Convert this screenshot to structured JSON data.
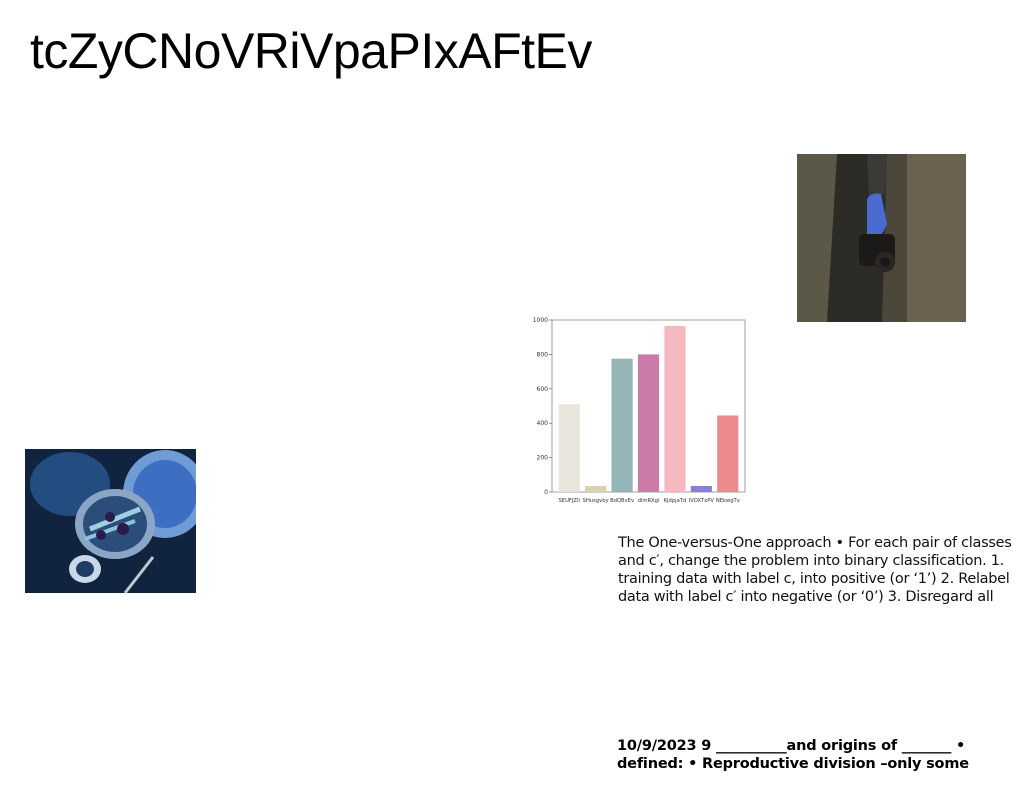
{
  "title": "tcZyCNoVRiVpaPIxAFtEv",
  "paragraph": "The One-versus-One approach • For each pair of classes and c′, change the problem into binary classification. 1. training data with label c, into positive (or ‘1’) 2. Relabel data with label c′ into negative (or ‘0’) 3. Disregard all",
  "footer": "10/9/2023 9 __________and origins of _______ • defined: • Reproductive division –only some",
  "images": {
    "photo_top": "camera-in-hand-photo",
    "photo_left": "blue-food-bowls-photo"
  },
  "chart_data": {
    "type": "bar",
    "categories": [
      "SEUFJZlI",
      "SHusgvby",
      "BdQBvEv",
      "dlmRXgi",
      "KJdpjaTd",
      "IVOXTxPV",
      "NEkwgTv"
    ],
    "values": [
      510,
      35,
      775,
      800,
      965,
      35,
      445
    ],
    "colors": [
      "#e8e5dc",
      "#d8d2b0",
      "#93b5b5",
      "#cc7aa8",
      "#f5b8c0",
      "#8a7ed8",
      "#ec8a8e"
    ],
    "yticks": [
      "0",
      "200",
      "400",
      "600",
      "800",
      "1000"
    ],
    "ylim": [
      0,
      1000
    ]
  }
}
